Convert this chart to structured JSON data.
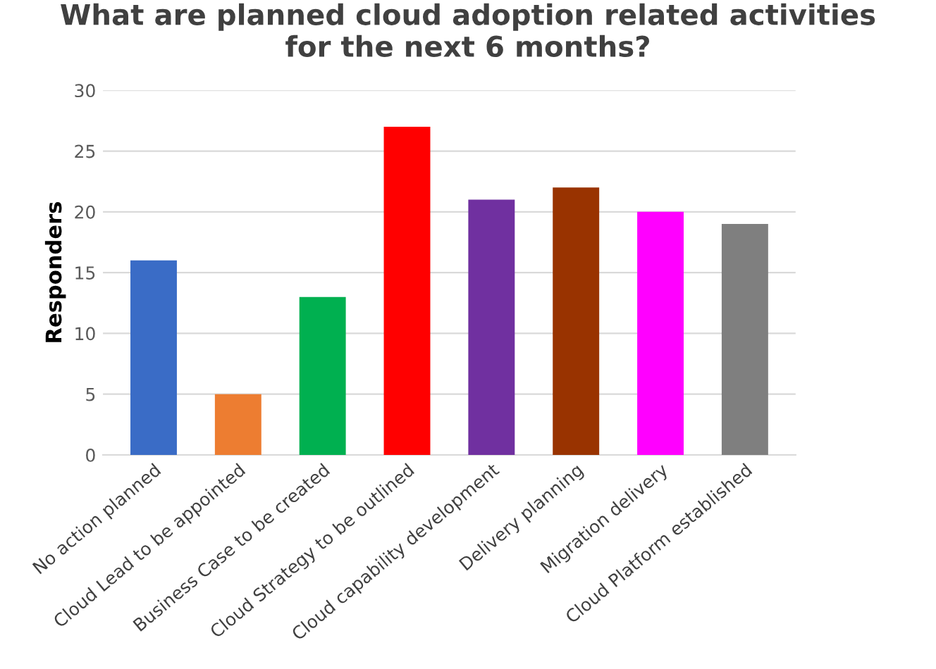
{
  "chart_data": {
    "type": "bar",
    "title": "What are planned cloud adoption related activities\nfor the next 6 months?",
    "ylabel": "Responders",
    "categories": [
      "No action planned",
      "Cloud Lead to be appointed",
      "Business Case to be created",
      "Cloud Strategy to be outlined",
      "Cloud capability development",
      "Delivery planning",
      "Migration delivery",
      "Cloud Platform established"
    ],
    "values": [
      16,
      5,
      13,
      27,
      21,
      22,
      20,
      19
    ],
    "colors": [
      "#3a6cc6",
      "#ed7d31",
      "#00b050",
      "#ff0000",
      "#7030a0",
      "#993300",
      "#ff00ff",
      "#7f7f7f"
    ],
    "ylim": [
      0,
      30
    ],
    "yticks": [
      0,
      5,
      10,
      15,
      20,
      25,
      30
    ],
    "grid": "y"
  }
}
